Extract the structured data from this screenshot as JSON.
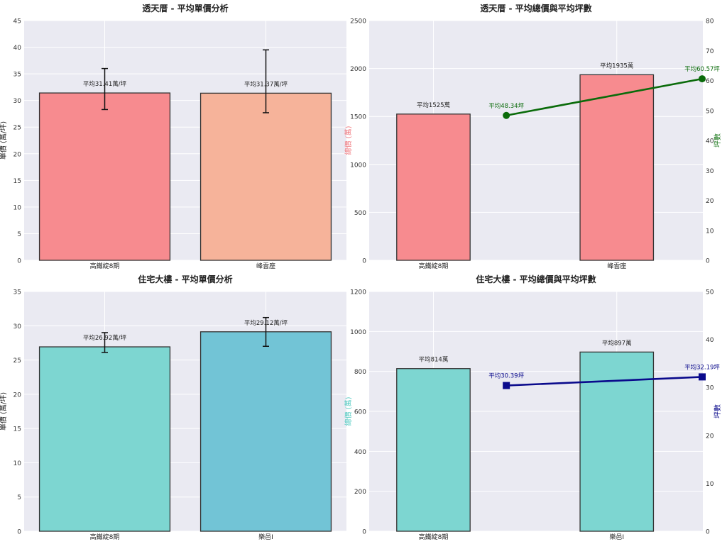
{
  "chart_data": [
    {
      "type": "bar",
      "title": "透天厝 - 平均單價分析",
      "xlabel": "",
      "ylabel": "單價 (萬/坪)",
      "ylim": [
        0,
        45
      ],
      "yticks": [
        0,
        5,
        10,
        15,
        20,
        25,
        30,
        35,
        40,
        45
      ],
      "categories": [
        "高鐵綻8期",
        "峰雲座"
      ],
      "values": [
        31.41,
        31.37
      ],
      "error_low": [
        28.3,
        27.7
      ],
      "error_high": [
        36.0,
        39.5
      ],
      "bar_colors": [
        "#f78b8f",
        "#f6b39a"
      ],
      "data_labels": [
        "平均31.41萬/坪",
        "平均31.37萬/坪"
      ],
      "grid": true
    },
    {
      "type": "bar+line",
      "title": "透天厝 - 平均總價與平均坪數",
      "xlabel": "",
      "ylabel": "總價 (萬)",
      "ylabel_color": "#f0787e",
      "ylim": [
        0,
        2500
      ],
      "yticks": [
        0,
        500,
        1000,
        1500,
        2000,
        2500
      ],
      "y2label": "坪數",
      "y2label_color": "#1e7a1e",
      "y2lim": [
        0,
        80
      ],
      "y2ticks": [
        0,
        10,
        20,
        30,
        40,
        50,
        60,
        70,
        80
      ],
      "categories": [
        "高鐵綻8期",
        "峰雲座"
      ],
      "values": [
        1525,
        1935
      ],
      "bar_color": "#f78b8f",
      "data_labels": [
        "平均1525萬",
        "平均1935萬"
      ],
      "line_values": [
        48.34,
        60.57
      ],
      "line_color": "#0a6b0a",
      "line_marker": "circle",
      "line_labels": [
        "平均48.34坪",
        "平均60.57坪"
      ],
      "grid": true
    },
    {
      "type": "bar",
      "title": "住宅大樓 - 平均單價分析",
      "xlabel": "",
      "ylabel": "單價 (萬/坪)",
      "ylim": [
        0,
        35
      ],
      "yticks": [
        0,
        5,
        10,
        15,
        20,
        25,
        30,
        35
      ],
      "categories": [
        "高鐵綻8期",
        "樂邑I"
      ],
      "values": [
        26.92,
        29.12
      ],
      "error_low": [
        26.1,
        27.0
      ],
      "error_high": [
        29.0,
        31.2
      ],
      "bar_colors": [
        "#7dd6d1",
        "#72c4d6"
      ],
      "data_labels": [
        "平均26.92萬/坪",
        "平均29.12萬/坪"
      ],
      "grid": true
    },
    {
      "type": "bar+line",
      "title": "住宅大樓 - 平均總價與平均坪數",
      "xlabel": "",
      "ylabel": "總價 (萬)",
      "ylabel_color": "#4ec9c0",
      "ylim": [
        0,
        1200
      ],
      "yticks": [
        0,
        200,
        400,
        600,
        800,
        1000,
        1200
      ],
      "y2label": "坪數",
      "y2label_color": "#0a0a8c",
      "y2lim": [
        0,
        50
      ],
      "y2ticks": [
        0,
        10,
        20,
        30,
        40,
        50
      ],
      "categories": [
        "高鐵綻8期",
        "樂邑I"
      ],
      "values": [
        814,
        897
      ],
      "bar_color": "#7dd6d1",
      "data_labels": [
        "平均814萬",
        "平均897萬"
      ],
      "line_values": [
        30.39,
        32.19
      ],
      "line_color": "#0a0a8c",
      "line_marker": "square",
      "line_labels": [
        "平均30.39坪",
        "平均32.19坪"
      ],
      "grid": true
    }
  ]
}
